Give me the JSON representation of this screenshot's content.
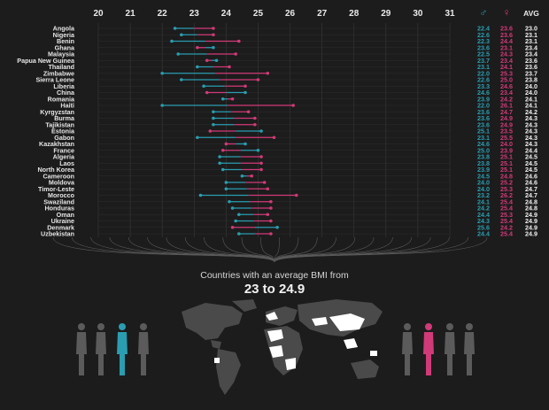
{
  "chart_data": {
    "type": "dumbbell",
    "title": "Countries with an average BMI from",
    "subtitle": "23 to 24.9",
    "x_ticks": [
      "20",
      "21",
      "22",
      "23",
      "24",
      "25",
      "26",
      "27",
      "28",
      "29",
      "30",
      "31"
    ],
    "xlim": [
      20,
      31
    ],
    "columns": {
      "male": "♂",
      "female": "♀",
      "avg": "AVG"
    },
    "colors": {
      "male": "#2a9db1",
      "female": "#d13a78",
      "text": "#e6e6e6",
      "grid": "#3a3a3a",
      "map_dark": "#4a4a4a",
      "map_highlight": "#ffffff",
      "figure": "#5b5b5b"
    },
    "rows": [
      {
        "country": "Angola",
        "male": 22.4,
        "female": 23.6,
        "avg": 23.0
      },
      {
        "country": "Nigeria",
        "male": 22.6,
        "female": 23.6,
        "avg": 23.1
      },
      {
        "country": "Benin",
        "male": 22.3,
        "female": 24.4,
        "avg": 23.1
      },
      {
        "country": "Ghana",
        "male": 23.6,
        "female": 23.1,
        "avg": 23.4
      },
      {
        "country": "Malaysia",
        "male": 22.5,
        "female": 24.3,
        "avg": 23.4
      },
      {
        "country": "Papua New Guinea",
        "male": 23.7,
        "female": 23.4,
        "avg": 23.6
      },
      {
        "country": "Thailand",
        "male": 23.1,
        "female": 24.1,
        "avg": 23.6
      },
      {
        "country": "Zimbabwe",
        "male": 22.0,
        "female": 25.3,
        "avg": 23.7
      },
      {
        "country": "Sierra Leone",
        "male": 22.6,
        "female": 25.0,
        "avg": 23.8
      },
      {
        "country": "Liberia",
        "male": 23.3,
        "female": 24.6,
        "avg": 24.0
      },
      {
        "country": "China",
        "male": 24.6,
        "female": 23.4,
        "avg": 24.0
      },
      {
        "country": "Romania",
        "male": 23.9,
        "female": 24.2,
        "avg": 24.1
      },
      {
        "country": "Haiti",
        "male": 22.0,
        "female": 26.1,
        "avg": 24.1
      },
      {
        "country": "Kyrgyzstan",
        "male": 23.6,
        "female": 24.7,
        "avg": 24.2
      },
      {
        "country": "Burma",
        "male": 23.6,
        "female": 24.9,
        "avg": 24.3
      },
      {
        "country": "Tajikistan",
        "male": 23.6,
        "female": 24.9,
        "avg": 24.3
      },
      {
        "country": "Estonia",
        "male": 25.1,
        "female": 23.5,
        "avg": 24.3
      },
      {
        "country": "Gabon",
        "male": 23.1,
        "female": 25.5,
        "avg": 24.3
      },
      {
        "country": "Kazakhstan",
        "male": 24.6,
        "female": 24.0,
        "avg": 24.3
      },
      {
        "country": "France",
        "male": 25.0,
        "female": 23.9,
        "avg": 24.4
      },
      {
        "country": "Algeria",
        "male": 23.8,
        "female": 25.1,
        "avg": 24.5
      },
      {
        "country": "Laos",
        "male": 23.8,
        "female": 25.1,
        "avg": 24.5
      },
      {
        "country": "North Korea",
        "male": 23.9,
        "female": 25.1,
        "avg": 24.5
      },
      {
        "country": "Cameroon",
        "male": 24.5,
        "female": 24.8,
        "avg": 24.6
      },
      {
        "country": "Moldova",
        "male": 24.0,
        "female": 25.2,
        "avg": 24.6
      },
      {
        "country": "Timor-Leste",
        "male": 24.0,
        "female": 25.3,
        "avg": 24.7
      },
      {
        "country": "Morocco",
        "male": 23.2,
        "female": 26.2,
        "avg": 24.7
      },
      {
        "country": "Swaziland",
        "male": 24.1,
        "female": 25.4,
        "avg": 24.8
      },
      {
        "country": "Honduras",
        "male": 24.2,
        "female": 25.4,
        "avg": 24.8
      },
      {
        "country": "Oman",
        "male": 24.4,
        "female": 25.3,
        "avg": 24.9
      },
      {
        "country": "Ukraine",
        "male": 24.3,
        "female": 25.4,
        "avg": 24.9
      },
      {
        "country": "Denmark",
        "male": 25.6,
        "female": 24.2,
        "avg": 24.9
      },
      {
        "country": "Uzbekistan",
        "male": 24.4,
        "female": 25.4,
        "avg": 24.9
      }
    ]
  }
}
